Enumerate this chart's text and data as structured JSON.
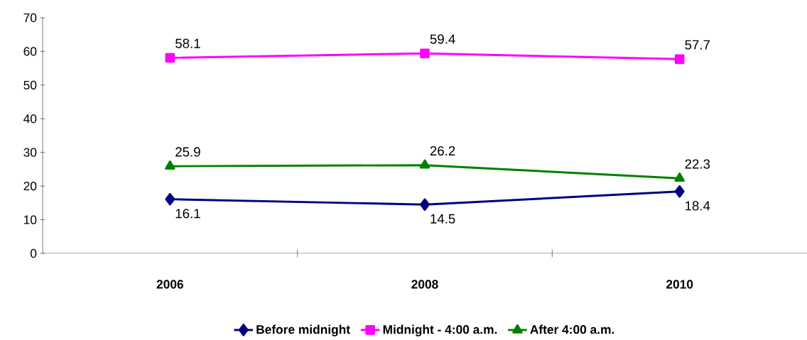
{
  "chart_data": {
    "type": "line",
    "categories": [
      "2006",
      "2008",
      "2010"
    ],
    "series": [
      {
        "name": "Before midnight",
        "color": "#000080",
        "marker": "diamond",
        "values": [
          16.1,
          14.5,
          18.4
        ]
      },
      {
        "name": "Midnight - 4:00 a.m.",
        "color": "#ff00ff",
        "marker": "square",
        "values": [
          58.1,
          59.4,
          57.7
        ]
      },
      {
        "name": "After 4:00 a.m.",
        "color": "#008000",
        "marker": "triangle",
        "values": [
          25.9,
          26.2,
          22.3
        ]
      }
    ],
    "ylim": [
      0,
      70
    ],
    "yticks": [
      0,
      10,
      20,
      30,
      40,
      50,
      60,
      70
    ],
    "data_labels": true,
    "grid": false,
    "legend": "bottom",
    "line_style": "solid"
  }
}
